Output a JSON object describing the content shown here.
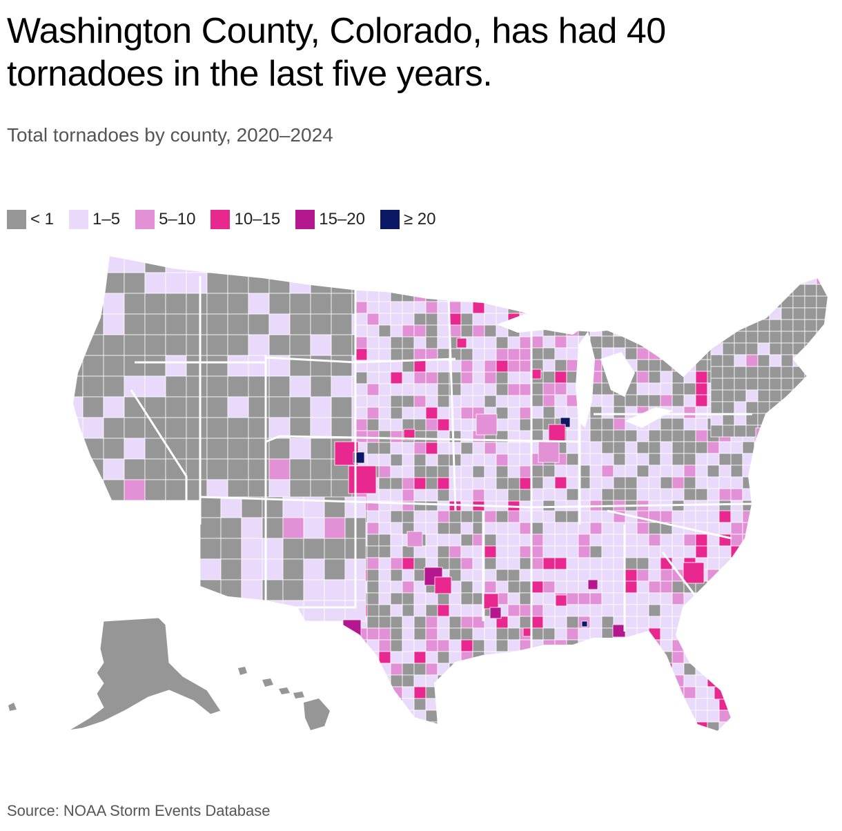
{
  "title": "Washington County, Colorado, has had 40 tornadoes in the last five years.",
  "subtitle": "Total tornadoes by county, 2020–2024",
  "legend": [
    {
      "label": "< 1",
      "color": "#969696"
    },
    {
      "label": "1–5",
      "color": "#e9d9fb"
    },
    {
      "label": "5–10",
      "color": "#e391d6"
    },
    {
      "label": "10–15",
      "color": "#e8288f"
    },
    {
      "label": "15–20",
      "color": "#b5178f"
    },
    {
      "label": "≥ 20",
      "color": "#0b1866"
    }
  ],
  "source": "Source: NOAA Storm Events Database"
}
